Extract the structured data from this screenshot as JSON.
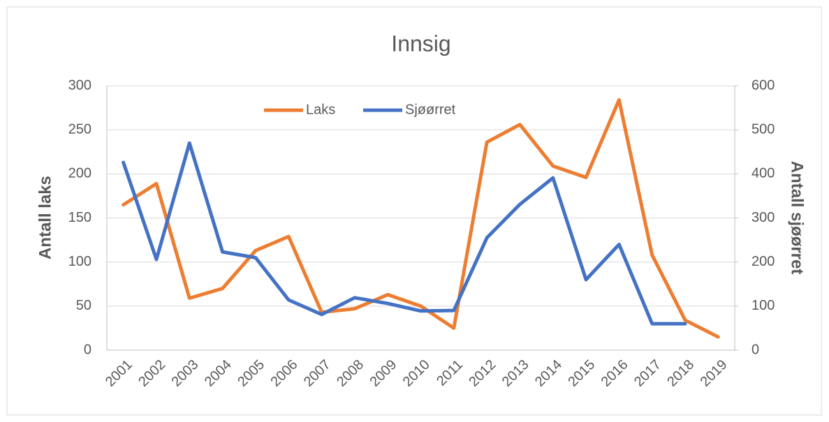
{
  "chart_data": {
    "type": "line",
    "title": "Innsig",
    "categories": [
      "2001",
      "2002",
      "2003",
      "2004",
      "2005",
      "2006",
      "2007",
      "2008",
      "2009",
      "2010",
      "2011",
      "2012",
      "2013",
      "2014",
      "2015",
      "2016",
      "2017",
      "2018",
      "2019"
    ],
    "series": [
      {
        "name": "Laks",
        "color": "#ed7d31",
        "values": [
          165,
          189,
          59,
          70,
          113,
          129,
          43,
          47,
          63,
          50,
          25,
          236,
          256,
          209,
          196,
          284,
          108,
          34,
          15
        ]
      },
      {
        "name": "Sjøørret",
        "color": "#4472c4",
        "axis": "y2",
        "values": [
          426,
          206,
          470,
          223,
          210,
          114,
          81,
          119,
          106,
          89,
          90,
          255,
          331,
          391,
          160,
          240,
          60,
          60,
          null
        ]
      }
    ],
    "ylabel": "Antall laks",
    "y2label": "Antall sjøørret",
    "ylim": [
      0,
      300
    ],
    "yticks": [
      0,
      50,
      100,
      150,
      200,
      250,
      300
    ],
    "y2lim": [
      0,
      600
    ],
    "y2ticks": [
      0,
      100,
      200,
      300,
      400,
      500,
      600
    ],
    "grid": true,
    "legend": "top"
  }
}
